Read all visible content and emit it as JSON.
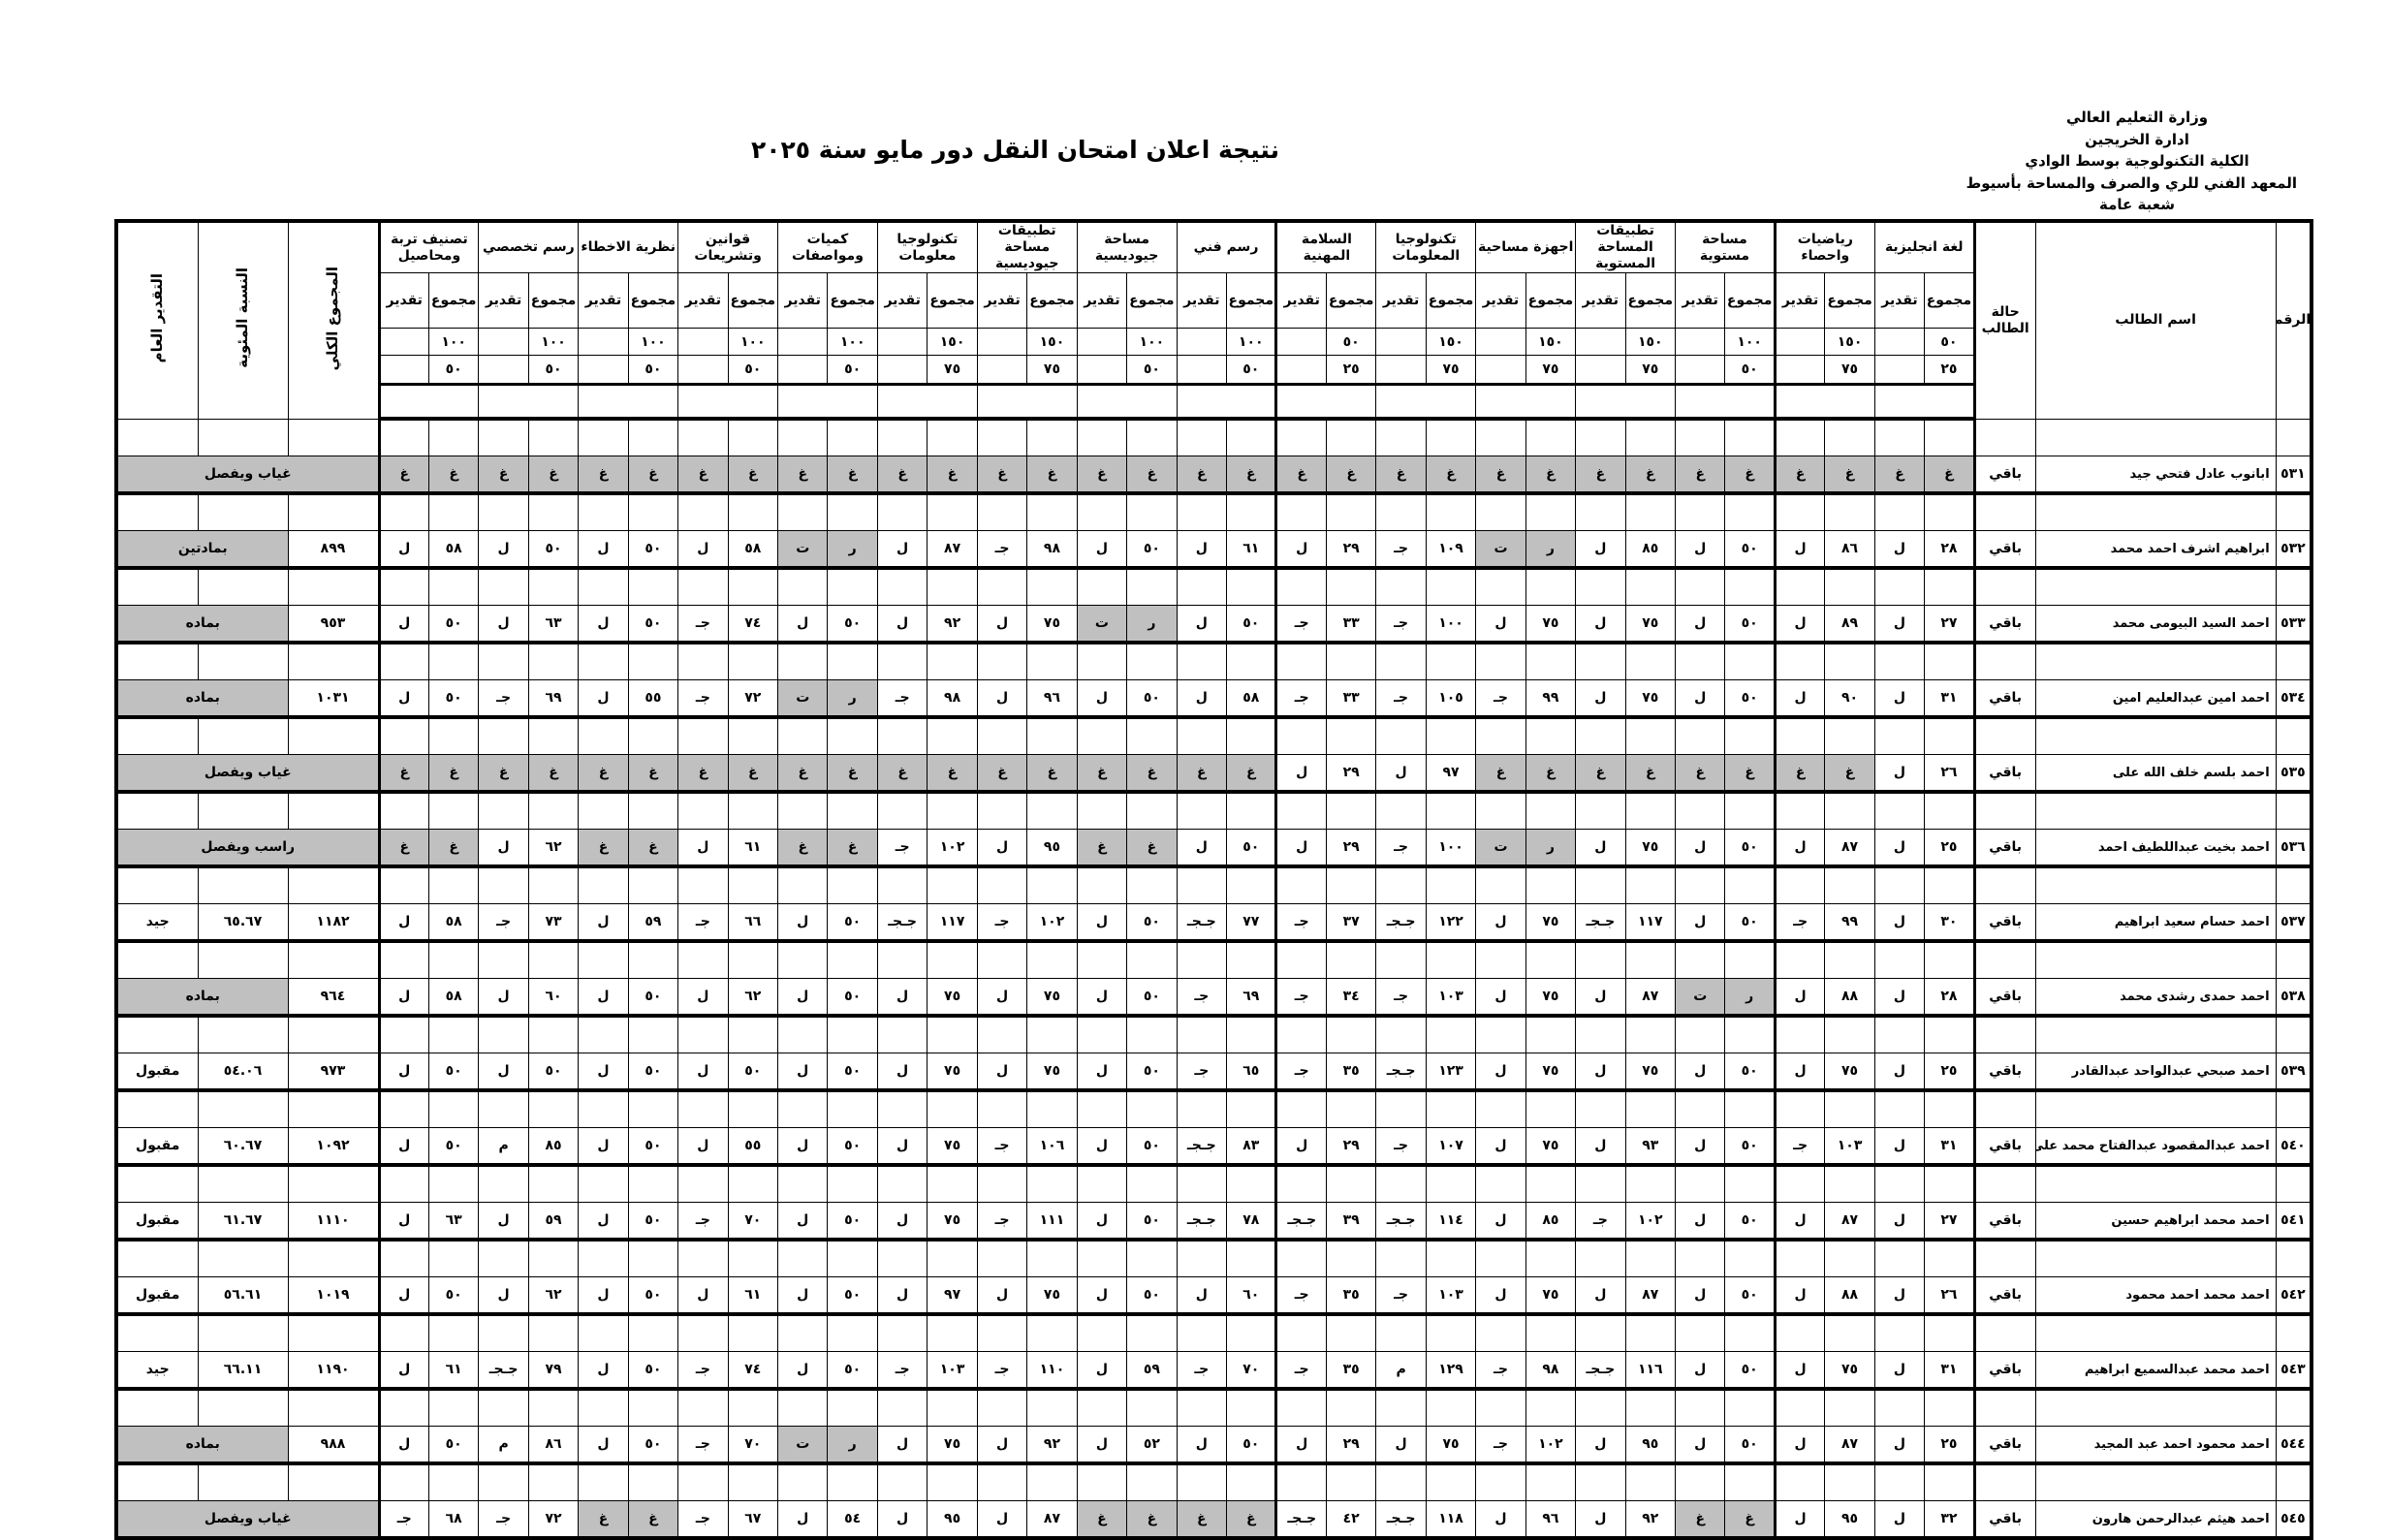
{
  "header": {
    "lines": [
      "وزارة التعليم العالي",
      "ادارة الخريجين",
      "الكلية التكنولوجية بوسط الوادي",
      "المعهد الفني للري والصرف والمساحة بأسيوط",
      "شعبة  عامة"
    ],
    "title": "نتيجة اعلان امتحان النقل دور مايو سنة ٢٠٢٥"
  },
  "columns": {
    "num": "الرقم",
    "name": "اسم الطالب",
    "status": "حالة الطالب",
    "total": "المجموع الكلي",
    "percent": "النسبة المئوية",
    "overall": "التقدير العام",
    "sum_label": "مجموع",
    "grade_label": "تقدير"
  },
  "subjects": [
    {
      "name": "لغة انجليزية",
      "max": "٥٠",
      "min": "٢٥"
    },
    {
      "name": "رياضيات واحصاء",
      "max": "١٥٠",
      "min": "٧٥"
    },
    {
      "name": "مساحة مستوية",
      "max": "١٠٠",
      "min": "٥٠"
    },
    {
      "name": "تطبيقات المساحة المستوية",
      "max": "١٥٠",
      "min": "٧٥"
    },
    {
      "name": "اجهزة مساحية",
      "max": "١٥٠",
      "min": "٧٥"
    },
    {
      "name": "تكنولوجيا المعلومات",
      "max": "١٥٠",
      "min": "٧٥"
    },
    {
      "name": "السلامة المهنية",
      "max": "٥٠",
      "min": "٢٥"
    },
    {
      "name": "رسم فني",
      "max": "١٠٠",
      "min": "٥٠"
    },
    {
      "name": "مساحة جيوديسية",
      "max": "١٠٠",
      "min": "٥٠"
    },
    {
      "name": "تطبيقات مساحة جيوديسية",
      "max": "١٥٠",
      "min": "٧٥"
    },
    {
      "name": "تكنولوجيا معلومات",
      "max": "١٥٠",
      "min": "٧٥"
    },
    {
      "name": "كميات ومواصفات",
      "max": "١٠٠",
      "min": "٥٠"
    },
    {
      "name": "قوانين وتشريعات",
      "max": "١٠٠",
      "min": "٥٠"
    },
    {
      "name": "نظرية الاخطاء",
      "max": "١٠٠",
      "min": "٥٠"
    },
    {
      "name": "رسم تخصصي",
      "max": "١٠٠",
      "min": "٥٠"
    },
    {
      "name": "تصنيف تربة ومحاصيل",
      "max": "١٠٠",
      "min": "٥٠"
    }
  ],
  "students": [
    {
      "num": "٥٣١",
      "name": "ابانوب عادل فتحي جيد",
      "status": "باقي",
      "grades": [
        [
          "غ",
          "غ"
        ],
        [
          "غ",
          "غ"
        ],
        [
          "غ",
          "غ"
        ],
        [
          "غ",
          "غ"
        ],
        [
          "غ",
          "غ"
        ],
        [
          "غ",
          "غ"
        ],
        [
          "غ",
          "غ"
        ],
        [
          "غ",
          "غ"
        ],
        [
          "غ",
          "غ"
        ],
        [
          "غ",
          "غ"
        ],
        [
          "غ",
          "غ"
        ],
        [
          "غ",
          "غ"
        ],
        [
          "غ",
          "غ"
        ],
        [
          "غ",
          "غ"
        ],
        [
          "غ",
          "غ"
        ],
        [
          "غ",
          "غ"
        ]
      ],
      "overall": "غياب ويفصل"
    },
    {
      "num": "٥٣٢",
      "name": "ابراهيم اشرف احمد محمد",
      "status": "باقي",
      "grades": [
        [
          "٢٨",
          "ل"
        ],
        [
          "٨٦",
          "ل"
        ],
        [
          "٥٠",
          "ل"
        ],
        [
          "٨٥",
          "ل"
        ],
        [
          "ر",
          "ت"
        ],
        [
          "١٠٩",
          "جـ"
        ],
        [
          "٢٩",
          "ل"
        ],
        [
          "٦١",
          "ل"
        ],
        [
          "٥٠",
          "ل"
        ],
        [
          "٩٨",
          "جـ"
        ],
        [
          "٨٧",
          "ل"
        ],
        [
          "ر",
          "ت"
        ],
        [
          "٥٨",
          "ل"
        ],
        [
          "٥٠",
          "ل"
        ],
        [
          "٥٠",
          "ل"
        ],
        [
          "٥٨",
          "ل"
        ]
      ],
      "total": "٨٩٩",
      "overall": "بمادتين"
    },
    {
      "num": "٥٣٣",
      "name": "احمد السيد البيومى محمد",
      "status": "باقي",
      "grades": [
        [
          "٢٧",
          "ل"
        ],
        [
          "٨٩",
          "ل"
        ],
        [
          "٥٠",
          "ل"
        ],
        [
          "٧٥",
          "ل"
        ],
        [
          "٧٥",
          "ل"
        ],
        [
          "١٠٠",
          "جـ"
        ],
        [
          "٣٣",
          "جـ"
        ],
        [
          "٥٠",
          "ل"
        ],
        [
          "ر",
          "ت"
        ],
        [
          "٧٥",
          "ل"
        ],
        [
          "٩٢",
          "ل"
        ],
        [
          "٥٠",
          "ل"
        ],
        [
          "٧٤",
          "جـ"
        ],
        [
          "٥٠",
          "ل"
        ],
        [
          "٦٣",
          "ل"
        ],
        [
          "٥٠",
          "ل"
        ]
      ],
      "total": "٩٥٣",
      "overall": "بماده"
    },
    {
      "num": "٥٣٤",
      "name": "احمد امين عبدالعليم امين",
      "status": "باقي",
      "grades": [
        [
          "٣١",
          "ل"
        ],
        [
          "٩٠",
          "ل"
        ],
        [
          "٥٠",
          "ل"
        ],
        [
          "٧٥",
          "ل"
        ],
        [
          "٩٩",
          "جـ"
        ],
        [
          "١٠٥",
          "جـ"
        ],
        [
          "٣٣",
          "جـ"
        ],
        [
          "٥٨",
          "ل"
        ],
        [
          "٥٠",
          "ل"
        ],
        [
          "٩٦",
          "ل"
        ],
        [
          "٩٨",
          "جـ"
        ],
        [
          "ر",
          "ت"
        ],
        [
          "٧٢",
          "جـ"
        ],
        [
          "٥٥",
          "ل"
        ],
        [
          "٦٩",
          "جـ"
        ],
        [
          "٥٠",
          "ل"
        ]
      ],
      "total": "١٠٣١",
      "overall": "بماده"
    },
    {
      "num": "٥٣٥",
      "name": "احمد بلسم خلف الله على",
      "status": "باقي",
      "grades": [
        [
          "٢٦",
          "ل"
        ],
        [
          "غ",
          "غ"
        ],
        [
          "غ",
          "غ"
        ],
        [
          "غ",
          "غ"
        ],
        [
          "غ",
          "غ"
        ],
        [
          "٩٧",
          "ل"
        ],
        [
          "٢٩",
          "ل"
        ],
        [
          "غ",
          "غ"
        ],
        [
          "غ",
          "غ"
        ],
        [
          "غ",
          "غ"
        ],
        [
          "غ",
          "غ"
        ],
        [
          "غ",
          "غ"
        ],
        [
          "غ",
          "غ"
        ],
        [
          "غ",
          "غ"
        ],
        [
          "غ",
          "غ"
        ],
        [
          "غ",
          "غ"
        ]
      ],
      "overall": "غياب ويفصل"
    },
    {
      "num": "٥٣٦",
      "name": "احمد بخيت عبداللطيف احمد",
      "status": "باقي",
      "grades": [
        [
          "٢٥",
          "ل"
        ],
        [
          "٨٧",
          "ل"
        ],
        [
          "٥٠",
          "ل"
        ],
        [
          "٧٥",
          "ل"
        ],
        [
          "ر",
          "ت"
        ],
        [
          "١٠٠",
          "جـ"
        ],
        [
          "٢٩",
          "ل"
        ],
        [
          "٥٠",
          "ل"
        ],
        [
          "غ",
          "غ"
        ],
        [
          "٩٥",
          "ل"
        ],
        [
          "١٠٢",
          "جـ"
        ],
        [
          "غ",
          "غ"
        ],
        [
          "٦١",
          "ل"
        ],
        [
          "غ",
          "غ"
        ],
        [
          "٦٢",
          "ل"
        ],
        [
          "غ",
          "غ"
        ]
      ],
      "overall": "راسب ويفصل"
    },
    {
      "num": "٥٣٧",
      "name": "احمد حسام سعيد ابراهيم",
      "status": "باقي",
      "grades": [
        [
          "٣٠",
          "ل"
        ],
        [
          "٩٩",
          "جـ"
        ],
        [
          "٥٠",
          "ل"
        ],
        [
          "١١٧",
          "جـجـ"
        ],
        [
          "٧٥",
          "ل"
        ],
        [
          "١٢٢",
          "جـجـ"
        ],
        [
          "٣٧",
          "جـ"
        ],
        [
          "٧٧",
          "جـجـ"
        ],
        [
          "٥٠",
          "ل"
        ],
        [
          "١٠٢",
          "جـ"
        ],
        [
          "١١٧",
          "جـجـ"
        ],
        [
          "٥٠",
          "ل"
        ],
        [
          "٦٦",
          "جـ"
        ],
        [
          "٥٩",
          "ل"
        ],
        [
          "٧٣",
          "جـ"
        ],
        [
          "٥٨",
          "ل"
        ]
      ],
      "total": "١١٨٢",
      "percent": "٦٥.٦٧",
      "overall": "جيد"
    },
    {
      "num": "٥٣٨",
      "name": "احمد حمدى رشدى محمد",
      "status": "باقي",
      "grades": [
        [
          "٢٨",
          "ل"
        ],
        [
          "٨٨",
          "ل"
        ],
        [
          "ر",
          "ت"
        ],
        [
          "٨٧",
          "ل"
        ],
        [
          "٧٥",
          "ل"
        ],
        [
          "١٠٣",
          "جـ"
        ],
        [
          "٣٤",
          "جـ"
        ],
        [
          "٦٩",
          "جـ"
        ],
        [
          "٥٠",
          "ل"
        ],
        [
          "٧٥",
          "ل"
        ],
        [
          "٧٥",
          "ل"
        ],
        [
          "٥٠",
          "ل"
        ],
        [
          "٦٢",
          "ل"
        ],
        [
          "٥٠",
          "ل"
        ],
        [
          "٦٠",
          "ل"
        ],
        [
          "٥٨",
          "ل"
        ]
      ],
      "total": "٩٦٤",
      "overall": "بماده"
    },
    {
      "num": "٥٣٩",
      "name": "احمد صبحي عبدالواحد عبدالقادر",
      "status": "باقي",
      "grades": [
        [
          "٢٥",
          "ل"
        ],
        [
          "٧٥",
          "ل"
        ],
        [
          "٥٠",
          "ل"
        ],
        [
          "٧٥",
          "ل"
        ],
        [
          "٧٥",
          "ل"
        ],
        [
          "١٢٣",
          "جـجـ"
        ],
        [
          "٣٥",
          "جـ"
        ],
        [
          "٦٥",
          "جـ"
        ],
        [
          "٥٠",
          "ل"
        ],
        [
          "٧٥",
          "ل"
        ],
        [
          "٧٥",
          "ل"
        ],
        [
          "٥٠",
          "ل"
        ],
        [
          "٥٠",
          "ل"
        ],
        [
          "٥٠",
          "ل"
        ],
        [
          "٥٠",
          "ل"
        ],
        [
          "٥٠",
          "ل"
        ]
      ],
      "total": "٩٧٣",
      "percent": "٥٤.٠٦",
      "overall": "مقبول"
    },
    {
      "num": "٥٤٠",
      "name": "احمد عبدالمقصود عبدالفتاح محمد على",
      "status": "باقي",
      "grades": [
        [
          "٣١",
          "ل"
        ],
        [
          "١٠٣",
          "جـ"
        ],
        [
          "٥٠",
          "ل"
        ],
        [
          "٩٣",
          "ل"
        ],
        [
          "٧٥",
          "ل"
        ],
        [
          "١٠٧",
          "جـ"
        ],
        [
          "٢٩",
          "ل"
        ],
        [
          "٨٣",
          "جـجـ"
        ],
        [
          "٥٠",
          "ل"
        ],
        [
          "١٠٦",
          "جـ"
        ],
        [
          "٧٥",
          "ل"
        ],
        [
          "٥٠",
          "ل"
        ],
        [
          "٥٥",
          "ل"
        ],
        [
          "٥٠",
          "ل"
        ],
        [
          "٨٥",
          "م"
        ],
        [
          "٥٠",
          "ل"
        ]
      ],
      "total": "١٠٩٢",
      "percent": "٦٠.٦٧",
      "overall": "مقبول"
    },
    {
      "num": "٥٤١",
      "name": "احمد محمد ابراهيم حسين",
      "status": "باقي",
      "grades": [
        [
          "٢٧",
          "ل"
        ],
        [
          "٨٧",
          "ل"
        ],
        [
          "٥٠",
          "ل"
        ],
        [
          "١٠٢",
          "جـ"
        ],
        [
          "٨٥",
          "ل"
        ],
        [
          "١١٤",
          "جـجـ"
        ],
        [
          "٣٩",
          "جـجـ"
        ],
        [
          "٧٨",
          "جـجـ"
        ],
        [
          "٥٠",
          "ل"
        ],
        [
          "١١١",
          "جـ"
        ],
        [
          "٧٥",
          "ل"
        ],
        [
          "٥٠",
          "ل"
        ],
        [
          "٧٠",
          "جـ"
        ],
        [
          "٥٠",
          "ل"
        ],
        [
          "٥٩",
          "ل"
        ],
        [
          "٦٣",
          "ل"
        ]
      ],
      "total": "١١١٠",
      "percent": "٦١.٦٧",
      "overall": "مقبول"
    },
    {
      "num": "٥٤٢",
      "name": "احمد محمد احمد محمود",
      "status": "باقي",
      "grades": [
        [
          "٢٦",
          "ل"
        ],
        [
          "٨٨",
          "ل"
        ],
        [
          "٥٠",
          "ل"
        ],
        [
          "٨٧",
          "ل"
        ],
        [
          "٧٥",
          "ل"
        ],
        [
          "١٠٣",
          "جـ"
        ],
        [
          "٣٥",
          "جـ"
        ],
        [
          "٦٠",
          "ل"
        ],
        [
          "٥٠",
          "ل"
        ],
        [
          "٧٥",
          "ل"
        ],
        [
          "٩٧",
          "ل"
        ],
        [
          "٥٠",
          "ل"
        ],
        [
          "٦١",
          "ل"
        ],
        [
          "٥٠",
          "ل"
        ],
        [
          "٦٢",
          "ل"
        ],
        [
          "٥٠",
          "ل"
        ]
      ],
      "total": "١٠١٩",
      "percent": "٥٦.٦١",
      "overall": "مقبول"
    },
    {
      "num": "٥٤٣",
      "name": "احمد محمد عبدالسميع ابراهيم",
      "status": "باقي",
      "grades": [
        [
          "٣١",
          "ل"
        ],
        [
          "٧٥",
          "ل"
        ],
        [
          "٥٠",
          "ل"
        ],
        [
          "١١٦",
          "جـجـ"
        ],
        [
          "٩٨",
          "جـ"
        ],
        [
          "١٢٩",
          "م"
        ],
        [
          "٣٥",
          "جـ"
        ],
        [
          "٧٠",
          "جـ"
        ],
        [
          "٥٩",
          "ل"
        ],
        [
          "١١٠",
          "جـ"
        ],
        [
          "١٠٣",
          "جـ"
        ],
        [
          "٥٠",
          "ل"
        ],
        [
          "٧٤",
          "جـ"
        ],
        [
          "٥٠",
          "ل"
        ],
        [
          "٧٩",
          "جـجـ"
        ],
        [
          "٦١",
          "ل"
        ]
      ],
      "total": "١١٩٠",
      "percent": "٦٦.١١",
      "overall": "جيد"
    },
    {
      "num": "٥٤٤",
      "name": "احمد محمود احمد عبد المجيد",
      "status": "باقي",
      "grades": [
        [
          "٢٥",
          "ل"
        ],
        [
          "٨٧",
          "ل"
        ],
        [
          "٥٠",
          "ل"
        ],
        [
          "٩٥",
          "ل"
        ],
        [
          "١٠٢",
          "جـ"
        ],
        [
          "٧٥",
          "ل"
        ],
        [
          "٢٩",
          "ل"
        ],
        [
          "٥٠",
          "ل"
        ],
        [
          "٥٢",
          "ل"
        ],
        [
          "٩٢",
          "ل"
        ],
        [
          "٧٥",
          "ل"
        ],
        [
          "ر",
          "ت"
        ],
        [
          "٧٠",
          "جـ"
        ],
        [
          "٥٠",
          "ل"
        ],
        [
          "٨٦",
          "م"
        ],
        [
          "٥٠",
          "ل"
        ]
      ],
      "total": "٩٨٨",
      "overall": "بماده"
    },
    {
      "num": "٥٤٥",
      "name": "احمد هيثم عبدالرحمن هارون",
      "status": "باقي",
      "grades": [
        [
          "٣٢",
          "ل"
        ],
        [
          "٩٥",
          "ل"
        ],
        [
          "غ",
          "غ"
        ],
        [
          "٩٢",
          "ل"
        ],
        [
          "٩٦",
          "ل"
        ],
        [
          "١١٨",
          "جـجـ"
        ],
        [
          "٤٢",
          "جـجـ"
        ],
        [
          "غ",
          "غ"
        ],
        [
          "غ",
          "غ"
        ],
        [
          "٨٧",
          "ل"
        ],
        [
          "٩٥",
          "ل"
        ],
        [
          "٥٤",
          "ل"
        ],
        [
          "٦٧",
          "جـ"
        ],
        [
          "غ",
          "غ"
        ],
        [
          "٧٢",
          "جـ"
        ],
        [
          "٦٨",
          "جـ"
        ]
      ],
      "overall": "غياب ويفصل"
    }
  ],
  "colors": {
    "shade": "#c0c0c0",
    "line": "#000000"
  }
}
